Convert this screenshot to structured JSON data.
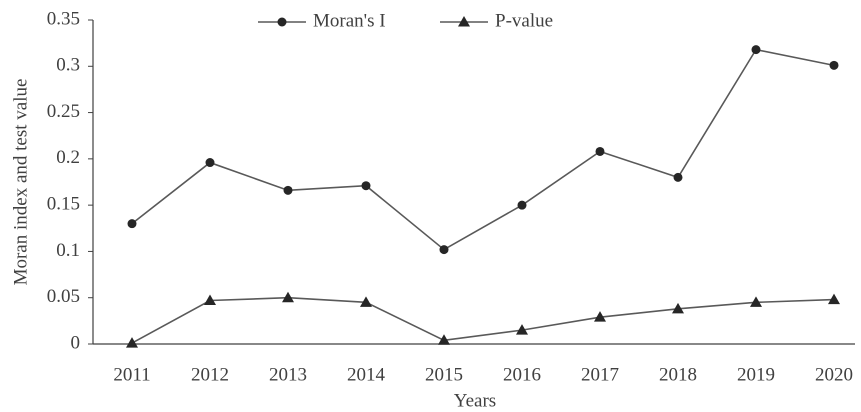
{
  "chart_data": {
    "type": "line",
    "x_label": "Years",
    "y_label": "Moran index and test value",
    "categories": [
      "2011",
      "2012",
      "2013",
      "2014",
      "2015",
      "2016",
      "2017",
      "2018",
      "2019",
      "2020"
    ],
    "series": [
      {
        "name": "Moran's I",
        "color": "#262626",
        "marker": "circle",
        "values": [
          0.13,
          0.196,
          0.166,
          0.171,
          0.102,
          0.15,
          0.208,
          0.18,
          0.318,
          0.301
        ]
      },
      {
        "name": "P-value",
        "color": "#262626",
        "marker": "triangle",
        "values": [
          0.001,
          0.047,
          0.05,
          0.045,
          0.004,
          0.015,
          0.029,
          0.038,
          0.045,
          0.048
        ]
      }
    ],
    "ylim": [
      0,
      0.35
    ],
    "yticks": [
      0,
      0.05,
      0.1,
      0.15,
      0.2,
      0.25,
      0.3,
      0.35
    ],
    "legend": "top"
  }
}
